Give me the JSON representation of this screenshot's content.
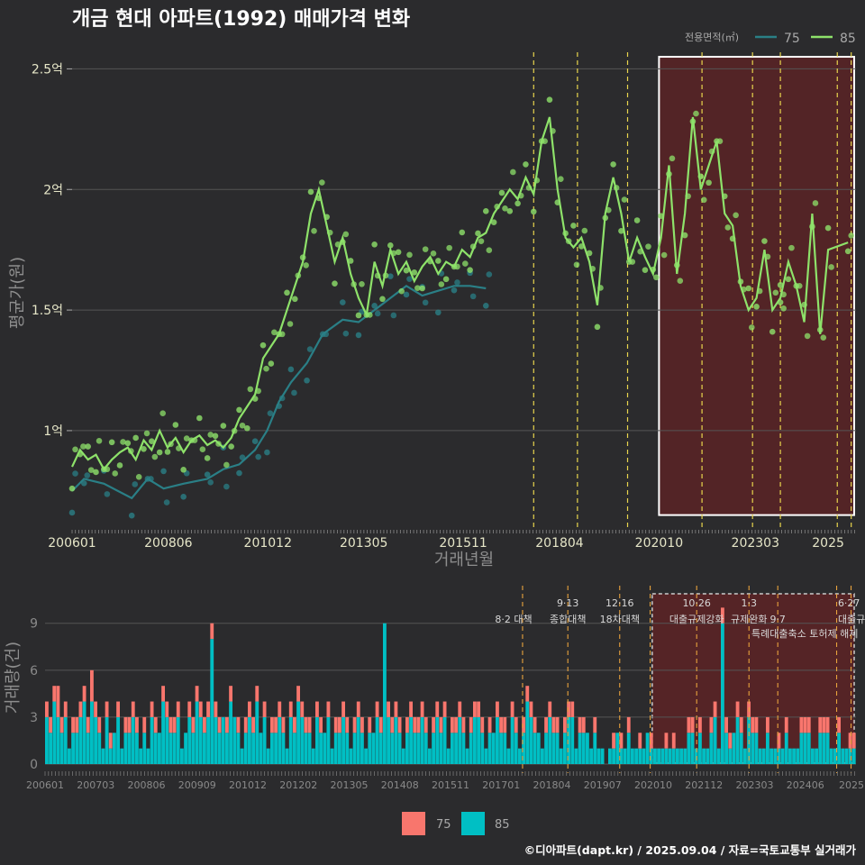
{
  "title": "개금 현대 아파트(1992) 매매가격 변화",
  "footer": "©디아파트(dapt.kr) / 2025.09.04 / 자료=국토교통부 실거래가",
  "colors": {
    "bg": "#2b2b2d",
    "grid": "#555555",
    "line75": "#2a7f86",
    "line85": "#8ee26a",
    "dot75": "#2a7f86",
    "dot85": "#8ee26a",
    "bar75": "#f8766d",
    "bar85": "#00bfc4",
    "policy": "#e8d44d",
    "shade": "#5a2326"
  },
  "chart_data": [
    {
      "type": "line",
      "name": "price",
      "xlabel": "거래년월",
      "ylabel": "평균가(원)",
      "ylim": [
        0.6,
        2.58
      ],
      "x_ticks": [
        "200601",
        "200806",
        "201012",
        "201305",
        "201511",
        "201804",
        "202010",
        "202303",
        "2025"
      ],
      "y_ticks": [
        {
          "v": 1.0,
          "label": "1억"
        },
        {
          "v": 1.5,
          "label": "1.5억"
        },
        {
          "v": 2.0,
          "label": "2억"
        },
        {
          "v": 2.5,
          "label": "2.5억"
        }
      ],
      "legend_title": "전용면적(㎡)",
      "series": [
        {
          "name": "75",
          "points": [
            [
              2006.0,
              0.75
            ],
            [
              2006.3,
              0.8
            ],
            [
              2006.8,
              0.78
            ],
            [
              2007.5,
              0.72
            ],
            [
              2007.9,
              0.8
            ],
            [
              2008.3,
              0.76
            ],
            [
              2008.8,
              0.78
            ],
            [
              2009.4,
              0.8
            ],
            [
              2009.8,
              0.84
            ],
            [
              2010.2,
              0.86
            ],
            [
              2010.6,
              0.92
            ],
            [
              2010.9,
              1.0
            ],
            [
              2011.2,
              1.12
            ],
            [
              2011.5,
              1.2
            ],
            [
              2011.9,
              1.28
            ],
            [
              2012.3,
              1.4
            ],
            [
              2012.8,
              1.46
            ],
            [
              2013.2,
              1.45
            ],
            [
              2013.6,
              1.5
            ],
            [
              2014.0,
              1.55
            ],
            [
              2014.4,
              1.6
            ],
            [
              2014.8,
              1.56
            ],
            [
              2015.2,
              1.58
            ],
            [
              2015.6,
              1.6
            ],
            [
              2016.0,
              1.6
            ],
            [
              2016.4,
              1.59
            ]
          ]
        },
        {
          "name": "85",
          "points": [
            [
              2006.0,
              0.85
            ],
            [
              2006.2,
              0.92
            ],
            [
              2006.4,
              0.88
            ],
            [
              2006.6,
              0.9
            ],
            [
              2006.8,
              0.84
            ],
            [
              2007.0,
              0.88
            ],
            [
              2007.2,
              0.91
            ],
            [
              2007.4,
              0.93
            ],
            [
              2007.6,
              0.88
            ],
            [
              2007.8,
              0.96
            ],
            [
              2008.0,
              0.92
            ],
            [
              2008.2,
              1.0
            ],
            [
              2008.4,
              0.93
            ],
            [
              2008.6,
              0.97
            ],
            [
              2008.8,
              0.91
            ],
            [
              2009.0,
              0.96
            ],
            [
              2009.2,
              0.98
            ],
            [
              2009.4,
              0.94
            ],
            [
              2009.6,
              0.96
            ],
            [
              2009.8,
              0.93
            ],
            [
              2010.0,
              0.97
            ],
            [
              2010.2,
              1.05
            ],
            [
              2010.4,
              1.1
            ],
            [
              2010.6,
              1.15
            ],
            [
              2010.8,
              1.3
            ],
            [
              2011.0,
              1.35
            ],
            [
              2011.2,
              1.4
            ],
            [
              2011.4,
              1.5
            ],
            [
              2011.6,
              1.6
            ],
            [
              2011.8,
              1.7
            ],
            [
              2012.0,
              1.9
            ],
            [
              2012.2,
              2.0
            ],
            [
              2012.4,
              1.85
            ],
            [
              2012.6,
              1.7
            ],
            [
              2012.8,
              1.8
            ],
            [
              2013.0,
              1.65
            ],
            [
              2013.2,
              1.55
            ],
            [
              2013.4,
              1.48
            ],
            [
              2013.6,
              1.7
            ],
            [
              2013.8,
              1.6
            ],
            [
              2014.0,
              1.75
            ],
            [
              2014.2,
              1.65
            ],
            [
              2014.4,
              1.7
            ],
            [
              2014.6,
              1.62
            ],
            [
              2014.8,
              1.68
            ],
            [
              2015.0,
              1.72
            ],
            [
              2015.2,
              1.65
            ],
            [
              2015.4,
              1.7
            ],
            [
              2015.6,
              1.68
            ],
            [
              2015.8,
              1.75
            ],
            [
              2016.0,
              1.72
            ],
            [
              2016.2,
              1.8
            ],
            [
              2016.4,
              1.82
            ],
            [
              2016.6,
              1.9
            ],
            [
              2016.8,
              1.95
            ],
            [
              2017.0,
              2.0
            ],
            [
              2017.2,
              1.96
            ],
            [
              2017.4,
              2.05
            ],
            [
              2017.6,
              1.98
            ],
            [
              2017.8,
              2.2
            ],
            [
              2018.0,
              2.3
            ],
            [
              2018.2,
              2.0
            ],
            [
              2018.4,
              1.8
            ],
            [
              2018.6,
              1.76
            ],
            [
              2018.8,
              1.8
            ],
            [
              2019.0,
              1.7
            ],
            [
              2019.2,
              1.52
            ],
            [
              2019.4,
              1.9
            ],
            [
              2019.6,
              2.05
            ],
            [
              2019.8,
              1.9
            ],
            [
              2020.0,
              1.7
            ],
            [
              2020.2,
              1.8
            ],
            [
              2020.4,
              1.72
            ],
            [
              2020.6,
              1.65
            ],
            [
              2020.8,
              1.8
            ],
            [
              2021.0,
              2.1
            ],
            [
              2021.2,
              1.65
            ],
            [
              2021.4,
              1.9
            ],
            [
              2021.6,
              2.3
            ],
            [
              2021.8,
              2.0
            ],
            [
              2022.0,
              2.1
            ],
            [
              2022.2,
              2.2
            ],
            [
              2022.4,
              1.9
            ],
            [
              2022.6,
              1.85
            ],
            [
              2022.8,
              1.6
            ],
            [
              2023.0,
              1.5
            ],
            [
              2023.2,
              1.55
            ],
            [
              2023.4,
              1.75
            ],
            [
              2023.6,
              1.5
            ],
            [
              2023.8,
              1.55
            ],
            [
              2023.8,
              1.55
            ],
            [
              2024.0,
              1.7
            ],
            [
              2024.2,
              1.6
            ],
            [
              2024.4,
              1.45
            ],
            [
              2024.6,
              1.9
            ],
            [
              2024.8,
              1.4
            ],
            [
              2025.0,
              1.75
            ],
            [
              2025.5,
              1.78
            ]
          ]
        }
      ],
      "policy_lines": [
        2017.6,
        2018.7,
        2019.96,
        2021.83,
        2023.1,
        2023.8,
        2025.23,
        2025.58
      ],
      "highlight_range": [
        2020.75,
        2025.7
      ]
    },
    {
      "type": "bar",
      "name": "volume",
      "xlabel": "",
      "ylabel": "거래량(건)",
      "ylim": [
        0,
        11
      ],
      "y_ticks": [
        0,
        3,
        6,
        9
      ],
      "x_ticks": [
        "200601",
        "200703",
        "200806",
        "200909",
        "201012",
        "201202",
        "201305",
        "201408",
        "201511",
        "201701",
        "201804",
        "201907",
        "202010",
        "202112",
        "202303",
        "202406",
        "2025"
      ],
      "legend": [
        "75",
        "85"
      ],
      "annotations": [
        {
          "x": 2017.6,
          "text": "8·2 대책",
          "row": 2
        },
        {
          "x": 2018.7,
          "text": "9·13",
          "row": 1
        },
        {
          "x": 2018.7,
          "text": "종합대책",
          "row": 2
        },
        {
          "x": 2019.96,
          "text": "12·16",
          "row": 1
        },
        {
          "x": 2019.96,
          "text": "18차대책",
          "row": 2
        },
        {
          "x": 2021.83,
          "text": "10·26",
          "row": 1
        },
        {
          "x": 2021.83,
          "text": "대출규제강화",
          "row": 2
        },
        {
          "x": 2023.1,
          "text": "1·3",
          "row": 1
        },
        {
          "x": 2023.1,
          "text": "규제완화",
          "row": 2
        },
        {
          "x": 2023.8,
          "text": "9·7",
          "row": 2
        },
        {
          "x": 2023.8,
          "text": "특례대출축소 토허제 해제",
          "row": 3
        },
        {
          "x": 2025.48,
          "text": "6·27",
          "row": 1
        },
        {
          "x": 2025.48,
          "text": "대출규제",
          "row": 2
        }
      ],
      "policy_lines": [
        2017.6,
        2018.7,
        2019.96,
        2020.7,
        2021.83,
        2023.1,
        2023.8,
        2025.23,
        2025.58
      ],
      "highlight_range": [
        2020.75,
        2025.7
      ],
      "series": [
        {
          "name": "85",
          "values": [
            3,
            2,
            4,
            3,
            2,
            3,
            1,
            2,
            2,
            3,
            4,
            2,
            4,
            3,
            2,
            1,
            3,
            1,
            2,
            3,
            1,
            2,
            2,
            3,
            2,
            1,
            2,
            1,
            3,
            2,
            2,
            4,
            3,
            2,
            2,
            3,
            1,
            2,
            3,
            2,
            4,
            3,
            2,
            3,
            8,
            3,
            2,
            3,
            2,
            4,
            3,
            2,
            1,
            2,
            3,
            2,
            4,
            2,
            3,
            1,
            2,
            2,
            3,
            2,
            1,
            3,
            2,
            4,
            3,
            2,
            2,
            1,
            3,
            2,
            2,
            3,
            1,
            2,
            2,
            3,
            2,
            1,
            2,
            3,
            2,
            1,
            2,
            2,
            3,
            2,
            9,
            3,
            2,
            3,
            2,
            1,
            2,
            3,
            2,
            2,
            3,
            2,
            1,
            2,
            3,
            2,
            3,
            1,
            2,
            2,
            3,
            2,
            1,
            2,
            3,
            3,
            2,
            1,
            2,
            2,
            3,
            2,
            2,
            1,
            3,
            2,
            1,
            2,
            4,
            3,
            2,
            2,
            1,
            2,
            3,
            2,
            2,
            1,
            2,
            3,
            3,
            1,
            2,
            2,
            2,
            1,
            2,
            1,
            1,
            0,
            1,
            1,
            2,
            1,
            1,
            2,
            1,
            1,
            1,
            1,
            2,
            1,
            1,
            1,
            1,
            1,
            1,
            1,
            1,
            1,
            1,
            2,
            2,
            1,
            2,
            1,
            1,
            2,
            3,
            1,
            9,
            2,
            1,
            2,
            3,
            2,
            1,
            3,
            2,
            2,
            1,
            1,
            2,
            1,
            1,
            1,
            1,
            2,
            1,
            1,
            1,
            2,
            2,
            2,
            1,
            1,
            2,
            2,
            2,
            1,
            1,
            2,
            1,
            1,
            1,
            1
          ]
        },
        {
          "name": "75",
          "values": [
            1,
            1,
            1,
            2,
            1,
            1,
            0,
            1,
            1,
            1,
            1,
            1,
            2,
            1,
            1,
            0,
            1,
            1,
            0,
            1,
            0,
            1,
            1,
            1,
            1,
            0,
            1,
            0,
            1,
            1,
            0,
            1,
            1,
            1,
            1,
            1,
            0,
            0,
            1,
            1,
            1,
            1,
            1,
            1,
            1,
            1,
            1,
            0,
            1,
            1,
            0,
            1,
            0,
            1,
            1,
            1,
            1,
            0,
            1,
            0,
            1,
            1,
            1,
            1,
            0,
            1,
            1,
            1,
            1,
            1,
            1,
            0,
            1,
            1,
            0,
            1,
            0,
            1,
            1,
            1,
            1,
            0,
            1,
            1,
            1,
            0,
            1,
            0,
            1,
            1,
            0,
            1,
            1,
            1,
            1,
            0,
            1,
            1,
            1,
            1,
            1,
            1,
            0,
            1,
            1,
            1,
            1,
            0,
            1,
            1,
            1,
            1,
            0,
            1,
            1,
            1,
            1,
            0,
            1,
            0,
            1,
            1,
            1,
            0,
            1,
            1,
            0,
            1,
            1,
            1,
            1,
            0,
            0,
            1,
            1,
            1,
            1,
            0,
            1,
            1,
            1,
            0,
            1,
            1,
            0,
            0,
            1,
            0,
            0,
            0,
            0,
            1,
            0,
            1,
            0,
            1,
            0,
            0,
            1,
            0,
            0,
            1,
            0,
            0,
            0,
            1,
            0,
            1,
            0,
            0,
            0,
            1,
            1,
            0,
            1,
            0,
            0,
            1,
            1,
            0,
            1,
            1,
            1,
            0,
            1,
            1,
            0,
            1,
            1,
            1,
            0,
            0,
            1,
            0,
            0,
            1,
            0,
            1,
            0,
            0,
            0,
            1,
            1,
            1,
            0,
            0,
            1,
            1,
            1,
            0,
            0,
            1,
            0,
            0,
            1,
            1
          ]
        }
      ]
    }
  ]
}
